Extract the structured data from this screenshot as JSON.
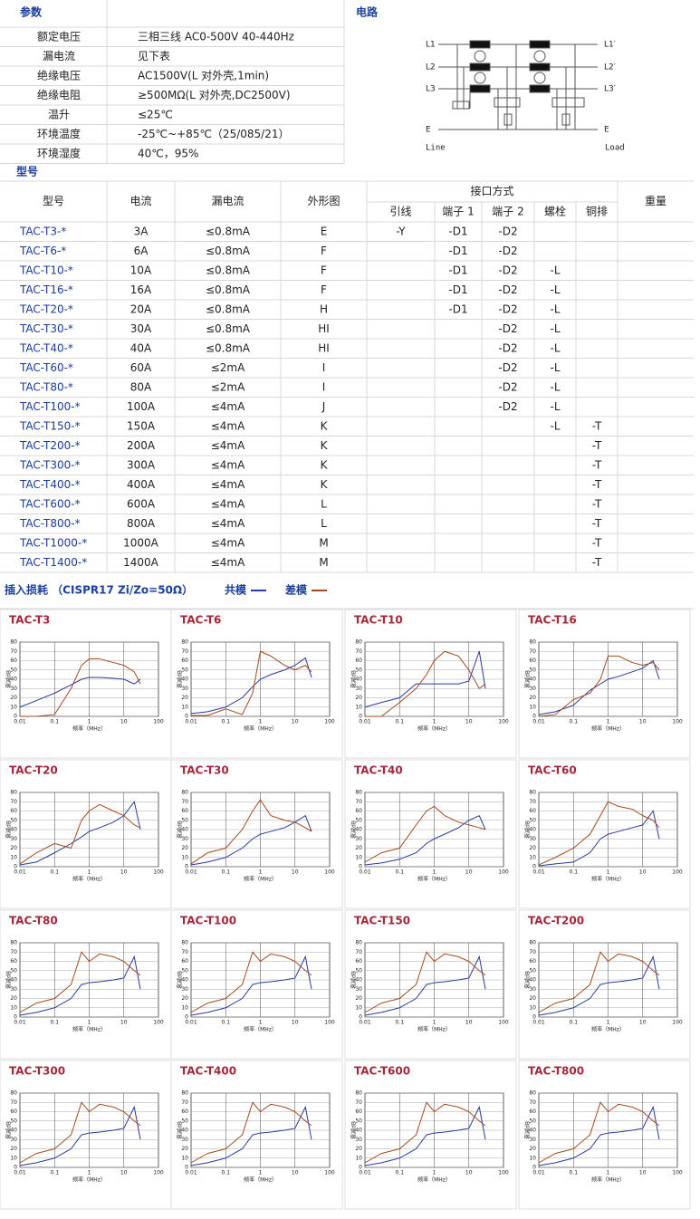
{
  "spec": {
    "title": "参数",
    "rows": [
      [
        "额定电压",
        "三相三线 AC0-500V 40-440Hz"
      ],
      [
        "漏电流",
        "见下表"
      ],
      [
        "绝缘电压",
        "AC1500V(L 对外壳,1min)"
      ],
      [
        "绝缘电阻",
        "≥500MΩ(L 对外壳,DC2500V)"
      ],
      [
        "温升",
        "≤25℃"
      ],
      [
        "环境温度",
        "-25℃~+85℃（25/085/21）"
      ],
      [
        "环境湿度",
        "40℃，95%"
      ]
    ]
  },
  "circuit": {
    "title": "电路",
    "input_labels": [
      "L1",
      "L2",
      "L3",
      "E"
    ],
    "input_caption": "Line",
    "output_labels": [
      "L1′",
      "L2′",
      "L3′",
      "E"
    ],
    "output_caption": "Load"
  },
  "models": {
    "title": "型号",
    "headers": [
      "型号",
      "电流",
      "漏电流",
      "外形图",
      "接口方式",
      "重量"
    ],
    "interface_headers": [
      "引线",
      "端子 1",
      "端子 2",
      "螺栓",
      "铜排"
    ],
    "rows": [
      [
        "TAC-T3-*",
        "3A",
        "≤0.8mA",
        "E",
        "-Y",
        "-D1",
        "-D2",
        null,
        null
      ],
      [
        "TAC-T6-*",
        "6A",
        "≤0.8mA",
        "F",
        null,
        "-D1",
        "-D2",
        null,
        null
      ],
      [
        "TAC-T10-*",
        "10A",
        "≤0.8mA",
        "F",
        null,
        "-D1",
        "-D2",
        "-L",
        null
      ],
      [
        "TAC-T16-*",
        "16A",
        "≤0.8mA",
        "F",
        null,
        "-D1",
        "-D2",
        "-L",
        null
      ],
      [
        "TAC-T20-*",
        "20A",
        "≤0.8mA",
        "H",
        null,
        "-D1",
        "-D2",
        "-L",
        null
      ],
      [
        "TAC-T30-*",
        "30A",
        "≤0.8mA",
        "HI",
        null,
        null,
        "-D2",
        "-L",
        null
      ],
      [
        "TAC-T40-*",
        "40A",
        "≤0.8mA",
        "HI",
        null,
        null,
        "-D2",
        "-L",
        null
      ],
      [
        "TAC-T60-*",
        "60A",
        "≤2mA",
        "I",
        null,
        null,
        "-D2",
        "-L",
        null
      ],
      [
        "TAC-T80-*",
        "80A",
        "≤2mA",
        "I",
        null,
        null,
        "-D2",
        "-L",
        null
      ],
      [
        "TAC-T100-*",
        "100A",
        "≤4mA",
        "J",
        null,
        null,
        "-D2",
        "-L",
        null
      ],
      [
        "TAC-T150-*",
        "150A",
        "≤4mA",
        "K",
        null,
        null,
        null,
        "-L",
        "-T"
      ],
      [
        "TAC-T200-*",
        "200A",
        "≤4mA",
        "K",
        null,
        null,
        null,
        null,
        "-T"
      ],
      [
        "TAC-T300-*",
        "300A",
        "≤4mA",
        "K",
        null,
        null,
        null,
        null,
        "-T"
      ],
      [
        "TAC-T400-*",
        "400A",
        "≤4mA",
        "K",
        null,
        null,
        null,
        null,
        "-T"
      ],
      [
        "TAC-T600-*",
        "600A",
        "≤4mA",
        "L",
        null,
        null,
        null,
        null,
        "-T"
      ],
      [
        "TAC-T800-*",
        "800A",
        "≤4mA",
        "L",
        null,
        null,
        null,
        null,
        "-T"
      ],
      [
        "TAC-T1000-*",
        "1000A",
        "≤4mA",
        "M",
        null,
        null,
        null,
        null,
        "-T"
      ],
      [
        "TAC-T1400-*",
        "1400A",
        "≤4mA",
        "M",
        null,
        null,
        null,
        null,
        "-T"
      ]
    ]
  },
  "insertion_loss": {
    "title": "插入损耗 （CISPR17 Zi/Zo=50Ω）",
    "legend": [
      {
        "name": "共模",
        "color": "#2b3a9c"
      },
      {
        "name": "差模",
        "color": "#a4491f"
      }
    ],
    "type": "line",
    "log_x": true,
    "xlabel": "频率（MHz）",
    "ylabel": "衰减dB",
    "xlim": [
      0.01,
      100
    ],
    "ylim": [
      0,
      80
    ],
    "xticks": [
      0.01,
      0.1,
      1,
      10,
      100
    ],
    "yticks": [
      0,
      10,
      20,
      30,
      40,
      50,
      60,
      70,
      80
    ],
    "x": [
      0.01,
      0.03,
      0.1,
      0.3,
      0.6,
      1,
      2,
      5,
      10,
      20,
      30
    ],
    "charts": [
      {
        "title": "TAC-T3",
        "series": [
          [
            10,
            17,
            25,
            34,
            40,
            42,
            42,
            41,
            40,
            35,
            40
          ],
          [
            0,
            0,
            2,
            30,
            55,
            62,
            62,
            58,
            55,
            48,
            35
          ]
        ]
      },
      {
        "title": "TAC-T6",
        "series": [
          [
            3,
            5,
            10,
            20,
            32,
            40,
            45,
            50,
            55,
            63,
            42
          ],
          [
            1,
            1,
            8,
            2,
            25,
            70,
            65,
            55,
            50,
            55,
            48
          ]
        ]
      },
      {
        "title": "TAC-T10",
        "series": [
          [
            10,
            15,
            20,
            35,
            35,
            35,
            35,
            35,
            38,
            70,
            30
          ],
          [
            0,
            0,
            15,
            30,
            45,
            60,
            70,
            65,
            50,
            30,
            35
          ]
        ]
      },
      {
        "title": "TAC-T16",
        "series": [
          [
            2,
            5,
            12,
            28,
            35,
            40,
            43,
            48,
            52,
            60,
            40
          ],
          [
            0,
            2,
            18,
            25,
            40,
            65,
            65,
            58,
            55,
            58,
            50
          ]
        ]
      },
      {
        "title": "TAC-T20",
        "series": [
          [
            2,
            5,
            15,
            25,
            32,
            38,
            42,
            48,
            55,
            70,
            40
          ],
          [
            3,
            15,
            25,
            20,
            50,
            60,
            67,
            60,
            55,
            45,
            42
          ]
        ]
      },
      {
        "title": "TAC-T30",
        "series": [
          [
            2,
            5,
            10,
            20,
            30,
            35,
            38,
            42,
            48,
            55,
            38
          ],
          [
            3,
            15,
            20,
            40,
            60,
            72,
            55,
            50,
            48,
            42,
            38
          ]
        ]
      },
      {
        "title": "TAC-T40",
        "series": [
          [
            2,
            4,
            8,
            15,
            25,
            30,
            35,
            42,
            50,
            55,
            40
          ],
          [
            5,
            15,
            20,
            45,
            60,
            65,
            55,
            48,
            45,
            42,
            40
          ]
        ]
      },
      {
        "title": "TAC-T60",
        "series": [
          [
            1,
            3,
            5,
            15,
            30,
            35,
            38,
            42,
            45,
            60,
            30
          ],
          [
            2,
            10,
            20,
            35,
            55,
            70,
            65,
            62,
            55,
            50,
            42
          ]
        ]
      },
      {
        "title": "TAC-T80",
        "series": [
          [
            2,
            5,
            10,
            20,
            35,
            37,
            38,
            40,
            42,
            65,
            30
          ],
          [
            5,
            15,
            20,
            35,
            70,
            60,
            68,
            65,
            60,
            50,
            45
          ]
        ]
      },
      {
        "title": "TAC-T100",
        "series": [
          [
            2,
            5,
            10,
            20,
            35,
            37,
            38,
            40,
            42,
            65,
            30
          ],
          [
            5,
            15,
            20,
            35,
            70,
            60,
            68,
            65,
            60,
            50,
            45
          ]
        ]
      },
      {
        "title": "TAC-T150",
        "series": [
          [
            2,
            5,
            10,
            20,
            35,
            37,
            38,
            40,
            42,
            65,
            30
          ],
          [
            5,
            15,
            20,
            35,
            70,
            60,
            68,
            65,
            60,
            50,
            45
          ]
        ]
      },
      {
        "title": "TAC-T200",
        "series": [
          [
            2,
            5,
            10,
            20,
            35,
            37,
            38,
            40,
            42,
            65,
            30
          ],
          [
            5,
            15,
            20,
            35,
            70,
            60,
            68,
            65,
            60,
            50,
            45
          ]
        ]
      },
      {
        "title": "TAC-T300",
        "series": [
          [
            2,
            5,
            10,
            20,
            35,
            37,
            38,
            40,
            42,
            65,
            30
          ],
          [
            5,
            15,
            20,
            35,
            70,
            60,
            68,
            65,
            60,
            50,
            45
          ]
        ]
      },
      {
        "title": "TAC-T400",
        "series": [
          [
            2,
            5,
            10,
            20,
            35,
            37,
            38,
            40,
            42,
            65,
            30
          ],
          [
            5,
            15,
            20,
            35,
            70,
            60,
            68,
            65,
            60,
            50,
            45
          ]
        ]
      },
      {
        "title": "TAC-T600",
        "series": [
          [
            2,
            5,
            10,
            20,
            35,
            37,
            38,
            40,
            42,
            65,
            30
          ],
          [
            5,
            15,
            20,
            35,
            70,
            60,
            68,
            65,
            60,
            50,
            45
          ]
        ]
      },
      {
        "title": "TAC-T800",
        "series": [
          [
            2,
            5,
            10,
            20,
            35,
            37,
            38,
            40,
            42,
            65,
            30
          ],
          [
            5,
            15,
            20,
            35,
            70,
            60,
            68,
            65,
            60,
            50,
            45
          ]
        ]
      }
    ]
  }
}
